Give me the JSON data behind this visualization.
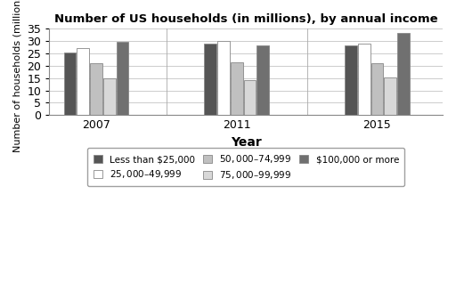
{
  "title": "Number of US households (in millions), by annual income",
  "xlabel": "Year",
  "ylabel": "Number of households (millions)",
  "years": [
    "2007",
    "2011",
    "2015"
  ],
  "categories": [
    "Less than $25,000",
    "$25,000–$49,999",
    "$50,000–$74,999",
    "$75,000–$99,999",
    "$100,000 or more"
  ],
  "values": {
    "2007": [
      25.3,
      27.0,
      21.0,
      14.8,
      29.5
    ],
    "2011": [
      29.0,
      30.0,
      21.2,
      14.0,
      28.0
    ],
    "2015": [
      28.1,
      29.0,
      21.0,
      15.3,
      33.3
    ]
  },
  "colors": [
    "#555555",
    "#ffffff",
    "#c0c0c0",
    "#d8d8d8",
    "#707070"
  ],
  "bar_edge_color": "#888888",
  "ylim": [
    0,
    35
  ],
  "yticks": [
    0,
    5,
    10,
    15,
    20,
    25,
    30,
    35
  ],
  "figsize": [
    5.12,
    3.37
  ],
  "dpi": 100,
  "bar_width": 0.13,
  "group_centers": [
    1.0,
    2.5,
    4.0
  ]
}
